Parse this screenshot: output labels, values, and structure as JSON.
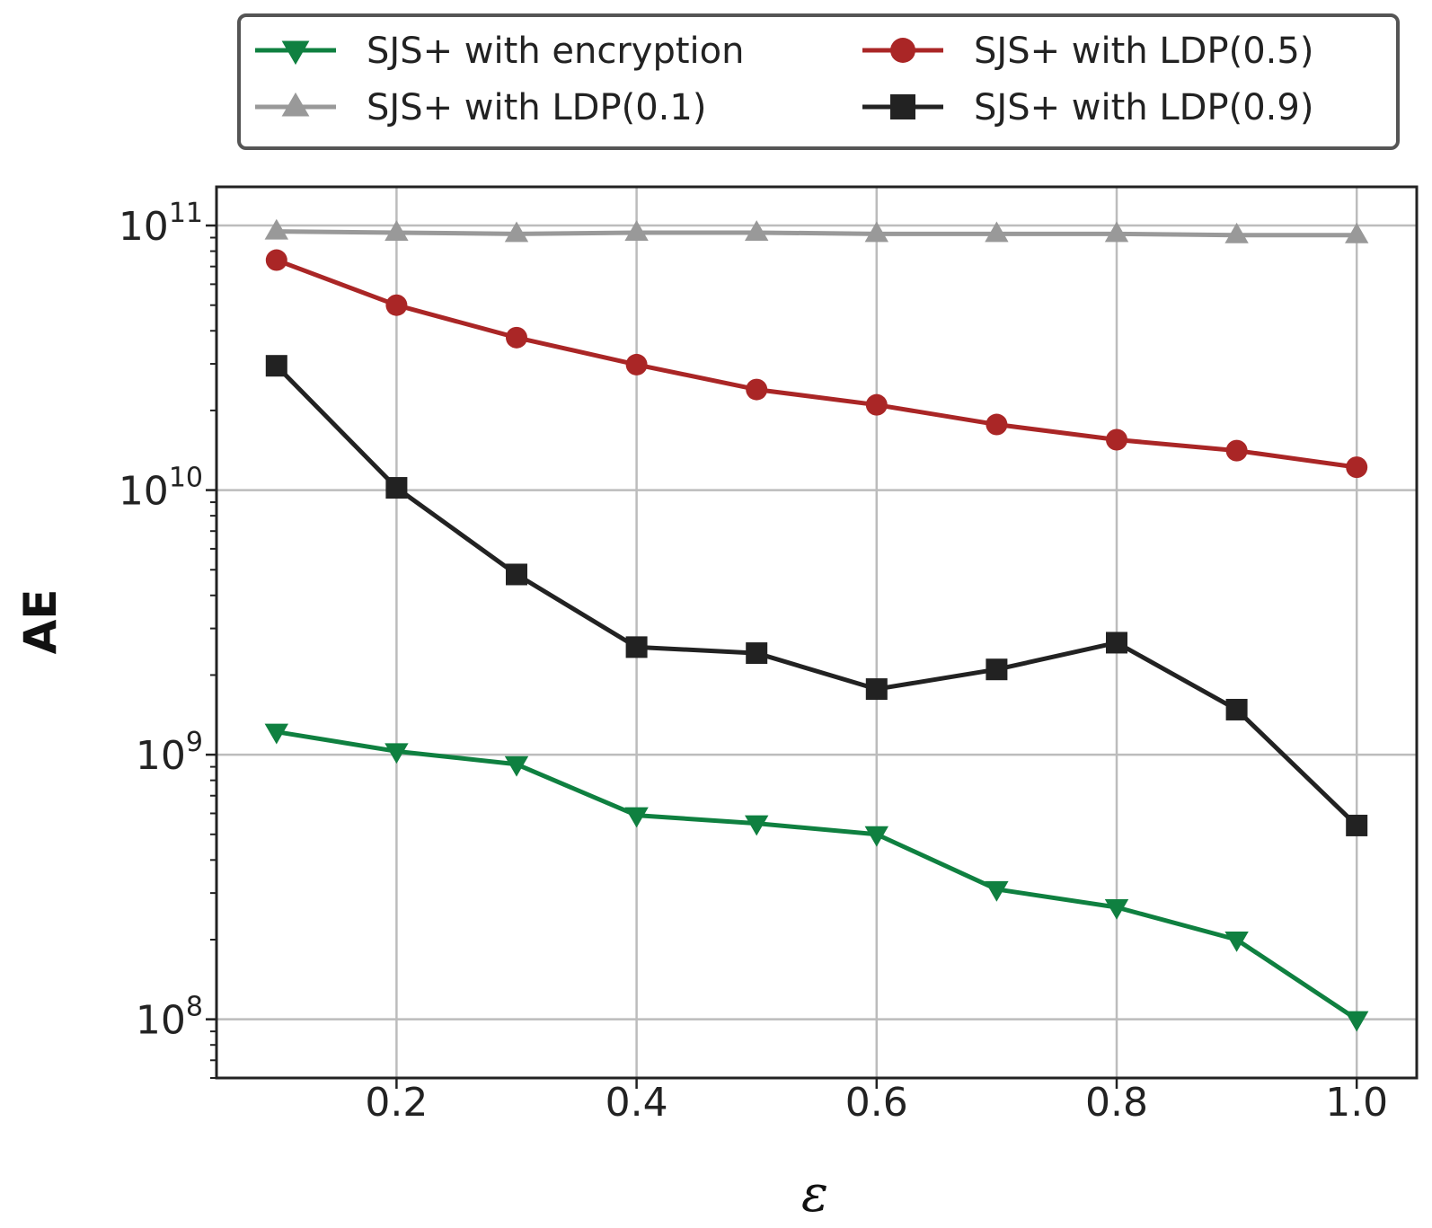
{
  "chart_data": {
    "type": "line",
    "title": "",
    "xlabel": "ε",
    "ylabel": "AE",
    "yscale": "log",
    "ylim": [
      60000000,
      140000000000
    ],
    "xlim": [
      0.05,
      1.05
    ],
    "grid": true,
    "legend_position": "top-center",
    "x": [
      0.1,
      0.2,
      0.3,
      0.4,
      0.5,
      0.6,
      0.7,
      0.8,
      0.9,
      1.0
    ],
    "x_ticks": [
      0.2,
      0.4,
      0.6,
      0.8,
      1.0
    ],
    "x_tick_labels": [
      "0.2",
      "0.4",
      "0.6",
      "0.8",
      "1.0"
    ],
    "y_ticks": [
      100000000,
      1000000000,
      10000000000,
      100000000000
    ],
    "y_tick_labels": [
      {
        "base": "10",
        "exp": "8"
      },
      {
        "base": "10",
        "exp": "9"
      },
      {
        "base": "10",
        "exp": "10"
      },
      {
        "base": "10",
        "exp": "11"
      }
    ],
    "series": [
      {
        "name": "SJS+ with encryption",
        "color": "#0f8040",
        "marker": "triangle-down",
        "values": [
          1220000000,
          1030000000,
          920000000,
          590000000,
          550000000,
          500000000,
          310000000,
          265000000,
          200000000,
          100000000
        ]
      },
      {
        "name": "SJS+ with LDP(0.5)",
        "color": "#aa2626",
        "marker": "circle",
        "values": [
          74000000000,
          50000000000,
          37700000000,
          29800000000,
          24000000000,
          21000000000,
          17700000000,
          15500000000,
          14100000000,
          12200000000
        ]
      },
      {
        "name": "SJS+ with LDP(0.1)",
        "color": "#999999",
        "marker": "triangle-up",
        "values": [
          95000000000,
          94000000000,
          93000000000,
          94000000000,
          94000000000,
          93000000000,
          93000000000,
          93000000000,
          92000000000,
          92000000000
        ]
      },
      {
        "name": "SJS+ with LDP(0.9)",
        "color": "#222222",
        "marker": "square",
        "values": [
          29500000000,
          10200000000,
          4800000000,
          2550000000,
          2420000000,
          1770000000,
          2100000000,
          2650000000,
          1480000000,
          540000000
        ]
      }
    ]
  }
}
